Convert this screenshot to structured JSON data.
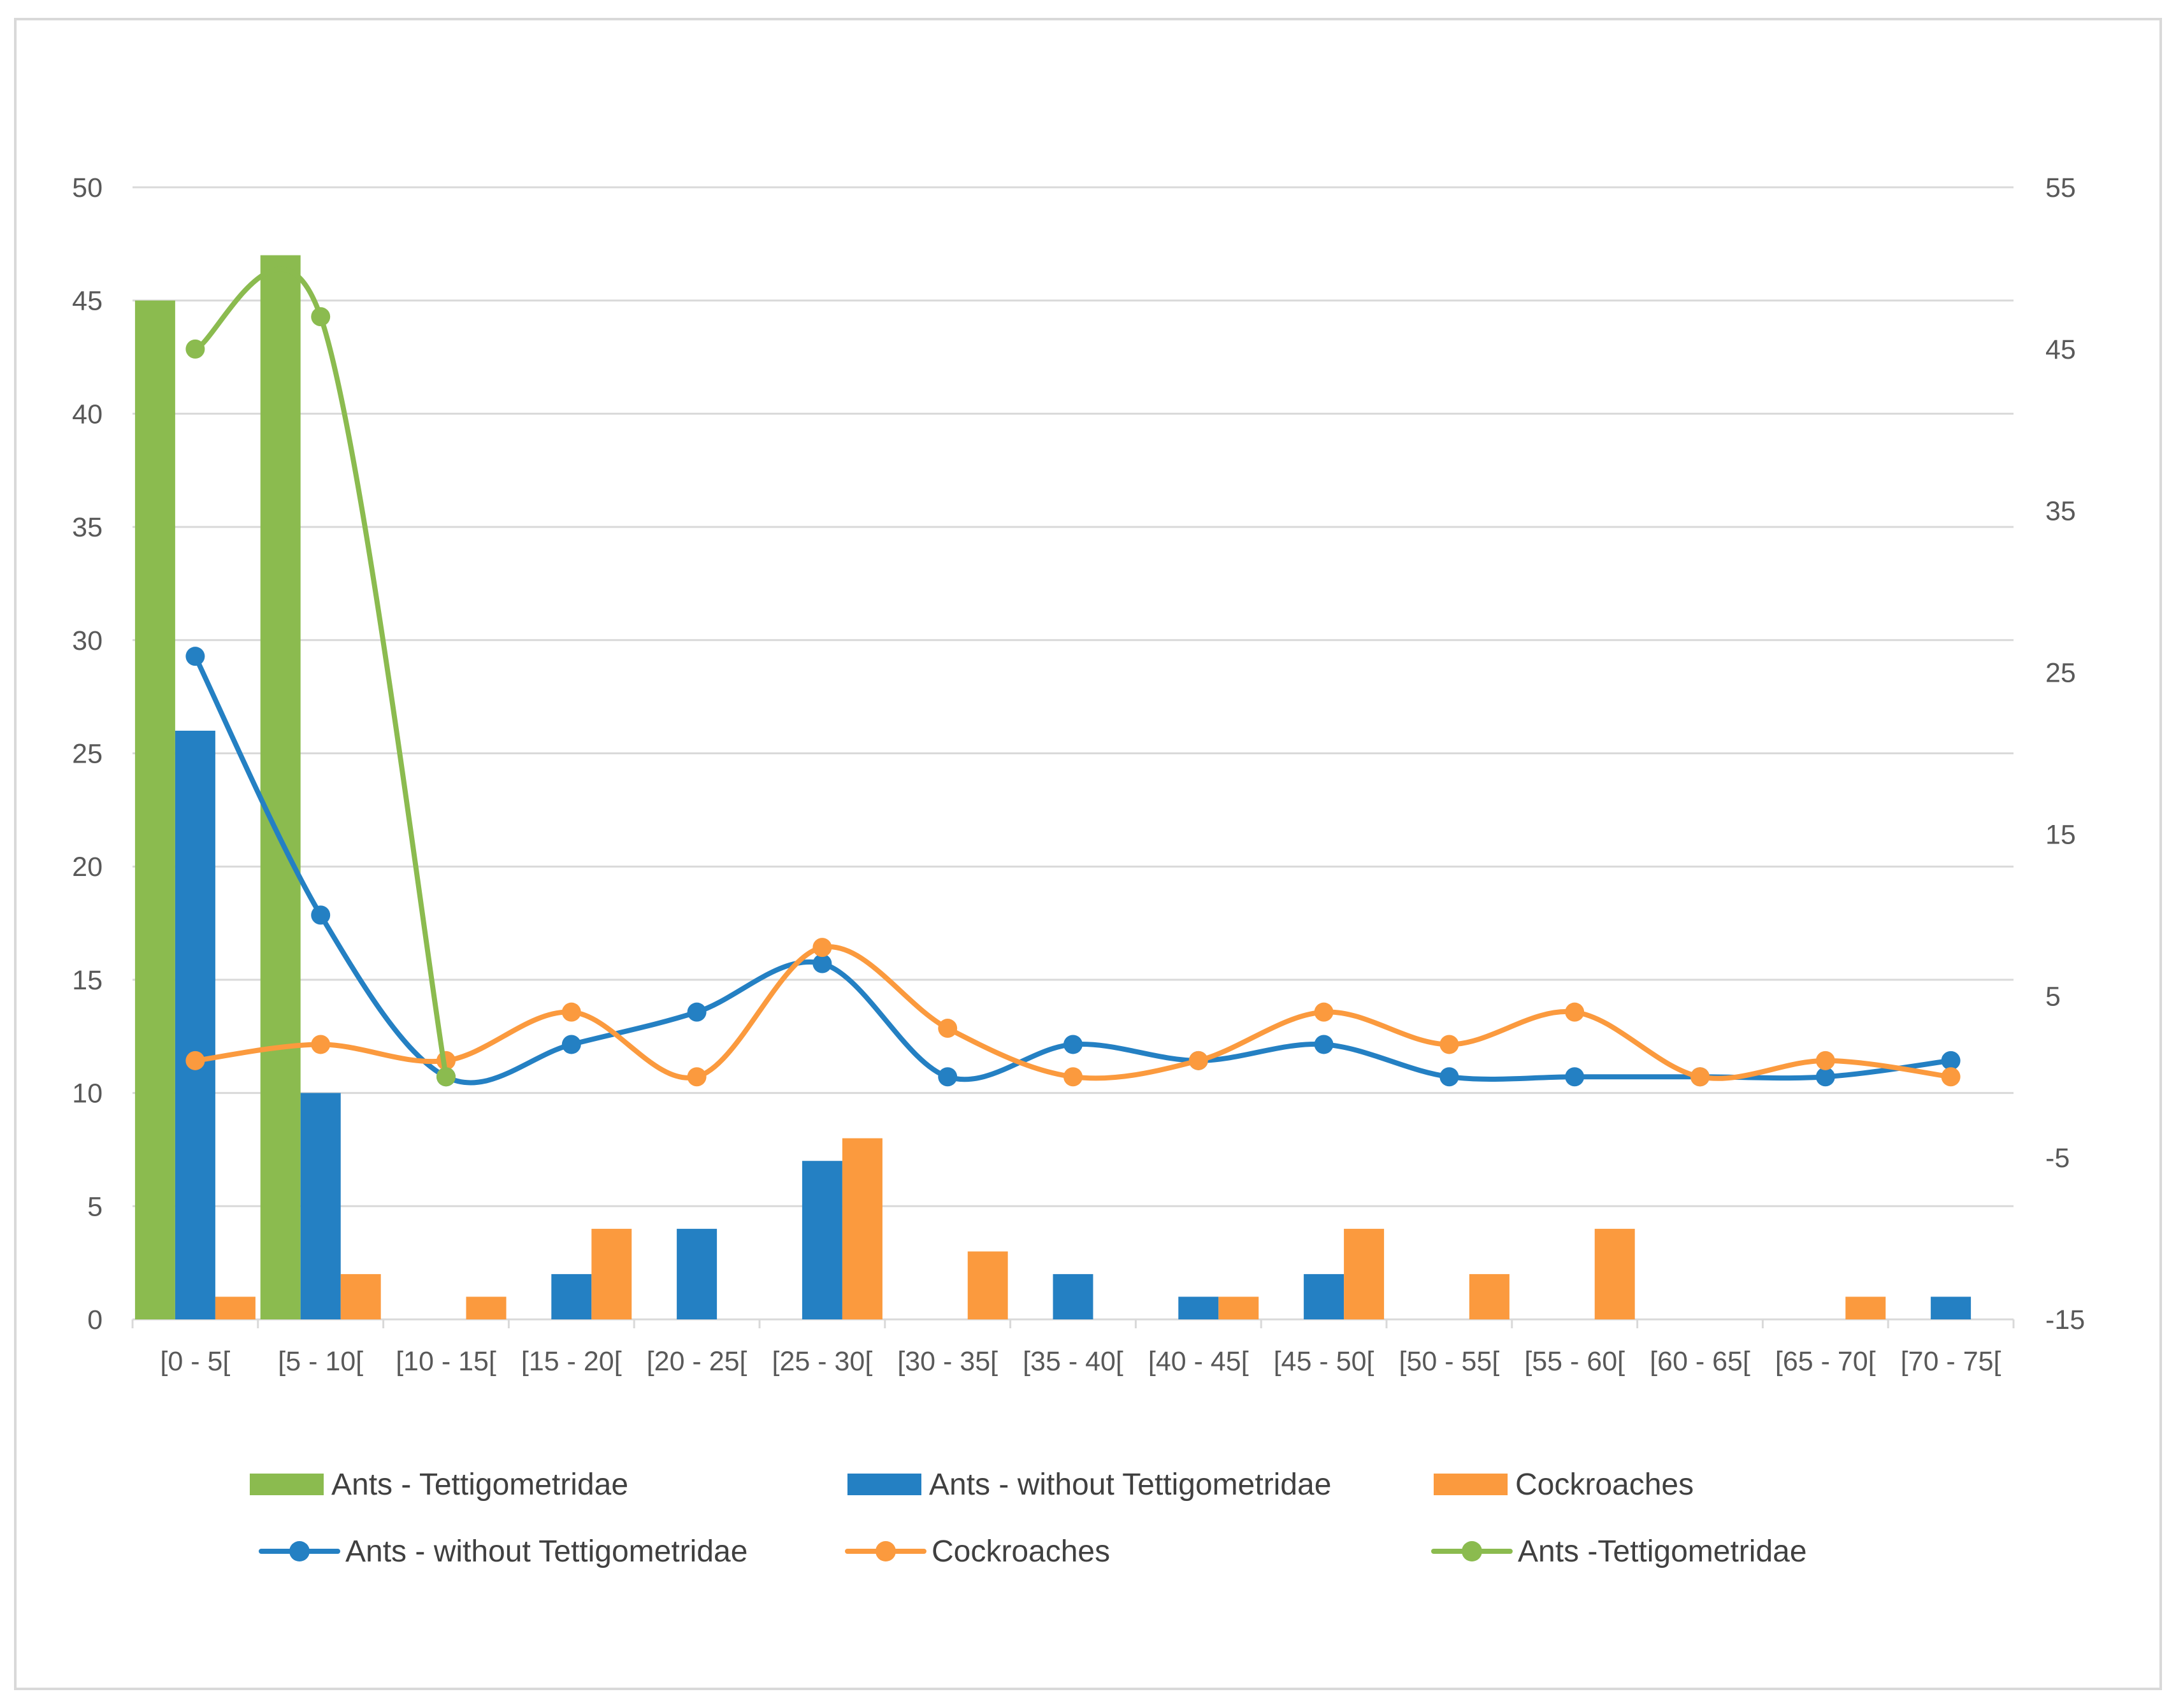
{
  "chart_data": {
    "type": "bar",
    "title": "",
    "xlabel": "",
    "ylabel": "",
    "categories": [
      "[0 - 5[",
      "[5 - 10[",
      "[10 - 15[",
      "[15 - 20[",
      "[20 - 25[",
      "[25 - 30[",
      "[30 - 35[",
      "[35 - 40[",
      "[40 - 45[",
      "[45 - 50[",
      "[50 - 55[",
      "[55 - 60[",
      "[60 - 65[",
      "[65 - 70[",
      "[70 - 75["
    ],
    "ylim": [
      0,
      50
    ],
    "yticks": [
      0,
      5,
      10,
      15,
      20,
      25,
      30,
      35,
      40,
      45,
      50
    ],
    "y2lim": [
      -15,
      55
    ],
    "y2ticks": [
      -15,
      -5,
      5,
      15,
      25,
      35,
      45,
      55
    ],
    "bar_series": [
      {
        "name": "Ants - Tettigometridae",
        "color": "#8bbb4f",
        "values": [
          45,
          47,
          0,
          0,
          0,
          0,
          0,
          0,
          0,
          0,
          0,
          0,
          0,
          0,
          0
        ]
      },
      {
        "name": "Ants - without Tettigometridae",
        "color": "#2480c3",
        "values": [
          26,
          10,
          0,
          2,
          4,
          7,
          0,
          2,
          1,
          2,
          0,
          0,
          0,
          0,
          1
        ]
      },
      {
        "name": "Cockroaches",
        "color": "#fb9a3e",
        "values": [
          1,
          2,
          1,
          4,
          0,
          8,
          3,
          0,
          1,
          4,
          2,
          4,
          0,
          1,
          0
        ]
      }
    ],
    "line_series": [
      {
        "name": "Ants - without Tettigometridae",
        "color": "#2480c3",
        "axis": "secondary",
        "values": [
          26,
          10,
          0,
          2,
          4,
          7,
          0,
          2,
          1,
          2,
          0,
          0,
          0,
          0,
          1
        ]
      },
      {
        "name": "Cockroaches",
        "color": "#fb9a3e",
        "axis": "secondary",
        "values": [
          1,
          2,
          1,
          4,
          0,
          8,
          3,
          0,
          1,
          4,
          2,
          4,
          0,
          1,
          0
        ]
      },
      {
        "name": "Ants -Tettigometridae",
        "color": "#8bbb4f",
        "axis": "secondary",
        "values": [
          45,
          47,
          0
        ]
      }
    ],
    "legend_position": "bottom",
    "grid": true
  }
}
